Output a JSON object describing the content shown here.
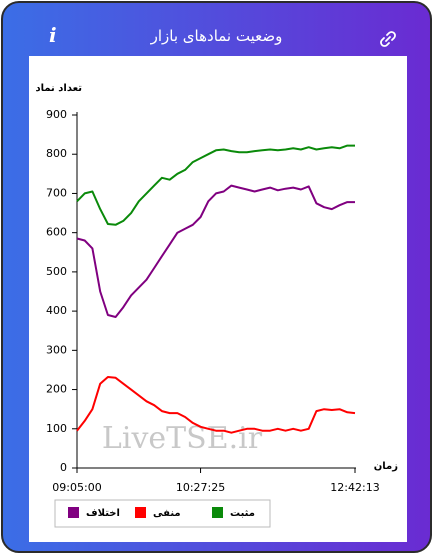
{
  "header": {
    "title": "وضعیت نمادهای بازار",
    "info_label": "i"
  },
  "chart_data": {
    "type": "line",
    "y_label": "تعداد نماد",
    "x_label": "زمان",
    "annotation": "LiveTSE.ir",
    "categories": [
      "09:05:00",
      null,
      null,
      null,
      null,
      null,
      null,
      null,
      null,
      null,
      null,
      null,
      null,
      null,
      null,
      null,
      "10:27:25",
      null,
      null,
      null,
      null,
      null,
      null,
      null,
      null,
      null,
      null,
      null,
      null,
      null,
      null,
      null,
      null,
      null,
      null,
      null,
      "12:42:13"
    ],
    "series": [
      {
        "name": "مثبت",
        "color": "#0a8a0a",
        "values": [
          680,
          700,
          705,
          660,
          622,
          620,
          630,
          650,
          680,
          700,
          720,
          740,
          735,
          750,
          760,
          780,
          790,
          800,
          810,
          812,
          808,
          805,
          805,
          808,
          810,
          812,
          810,
          812,
          815,
          812,
          818,
          812,
          815,
          818,
          815,
          822,
          822
        ]
      },
      {
        "name": "منفی",
        "color": "#ff0000",
        "values": [
          95,
          120,
          150,
          215,
          232,
          230,
          215,
          200,
          185,
          170,
          160,
          145,
          140,
          140,
          130,
          115,
          105,
          100,
          95,
          95,
          90,
          95,
          100,
          100,
          95,
          95,
          100,
          95,
          100,
          95,
          100,
          145,
          150,
          148,
          150,
          142,
          140
        ]
      },
      {
        "name": "اختلاف",
        "color": "#800080",
        "values": [
          585,
          580,
          560,
          450,
          390,
          385,
          410,
          440,
          460,
          480,
          510,
          540,
          570,
          600,
          610,
          620,
          640,
          680,
          700,
          705,
          720,
          715,
          710,
          705,
          710,
          715,
          708,
          712,
          715,
          710,
          718,
          675,
          665,
          660,
          670,
          678,
          678
        ]
      }
    ],
    "ylim": [
      0,
      900
    ],
    "yticks": [
      0,
      100,
      200,
      300,
      400,
      500,
      600,
      700,
      800,
      900
    ],
    "grid": false
  }
}
